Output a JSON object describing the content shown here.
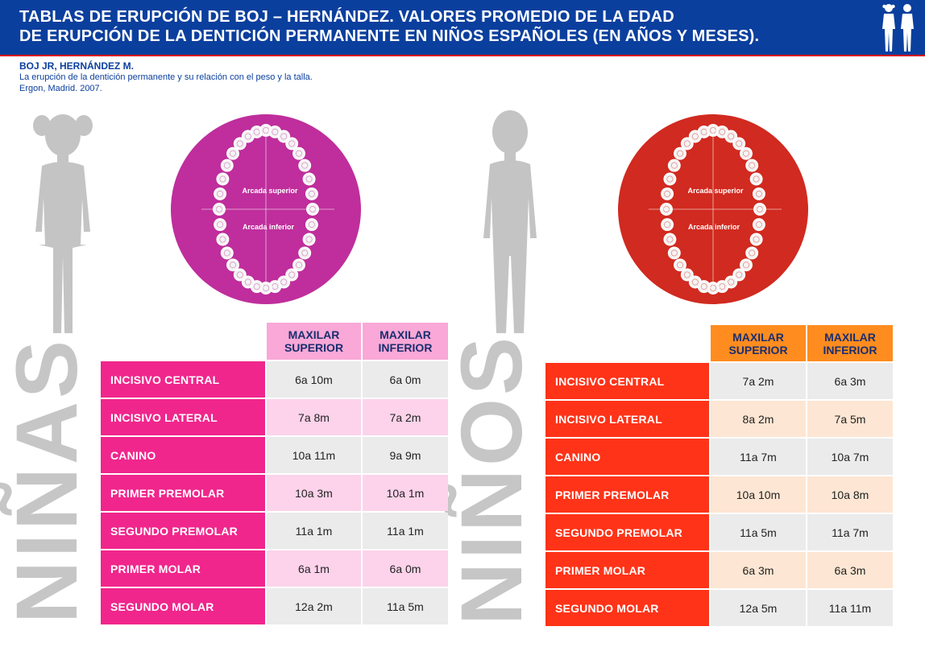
{
  "header": {
    "title_line1": "TABLAS DE ERUPCIÓN DE BOJ – HERNÁNDEZ. VALORES PROMEDIO DE LA EDAD",
    "title_line2": "DE ERUPCIÓN DE LA DENTICIÓN PERMANENTE EN NIÑOS ESPAÑOLES (EN AÑOS Y MESES).",
    "icon": "children-silhouette-icon"
  },
  "reference": {
    "authors": "BOJ JR, HERNÁNDEZ M.",
    "line1": "La erupción de la dentición permanente y su relación con el peso y la talla.",
    "line2": "Ergon, Madrid. 2007."
  },
  "girls": {
    "title": "NIÑAS",
    "color": "#f0268c",
    "arch_color": "#bf2e9c",
    "arch_upper_label": "Arcada superior",
    "arch_lower_label": "Arcada inferior",
    "col1": "MAXILAR SUPERIOR",
    "col2": "MAXILAR INFERIOR",
    "rows": [
      {
        "tooth": "INCISIVO CENTRAL",
        "sup": "6a 10m",
        "inf": "6a 0m"
      },
      {
        "tooth": "INCISIVO LATERAL",
        "sup": "7a 8m",
        "inf": "7a 2m"
      },
      {
        "tooth": "CANINO",
        "sup": "10a 11m",
        "inf": "9a 9m"
      },
      {
        "tooth": "PRIMER PREMOLAR",
        "sup": "10a 3m",
        "inf": "10a 1m"
      },
      {
        "tooth": "SEGUNDO PREMOLAR",
        "sup": "11a 1m",
        "inf": "11a 1m"
      },
      {
        "tooth": "PRIMER MOLAR",
        "sup": "6a 1m",
        "inf": "6a 0m"
      },
      {
        "tooth": "SEGUNDO MOLAR",
        "sup": "12a 2m",
        "inf": "11a 5m"
      }
    ]
  },
  "boys": {
    "title": "NIÑOS",
    "color": "#ff3318",
    "arch_color": "#d12a20",
    "arch_upper_label": "Arcada superior",
    "arch_lower_label": "Arcada inferior",
    "col1": "MAXILAR SUPERIOR",
    "col2": "MAXILAR INFERIOR",
    "rows": [
      {
        "tooth": "INCISIVO CENTRAL",
        "sup": "7a 2m",
        "inf": "6a 3m"
      },
      {
        "tooth": "INCISIVO LATERAL",
        "sup": "8a 2m",
        "inf": "7a 5m"
      },
      {
        "tooth": "CANINO",
        "sup": "11a 7m",
        "inf": "10a 7m"
      },
      {
        "tooth": "PRIMER PREMOLAR",
        "sup": "10a 10m",
        "inf": "10a 8m"
      },
      {
        "tooth": "SEGUNDO PREMOLAR",
        "sup": "11a 5m",
        "inf": "11a 7m"
      },
      {
        "tooth": "PRIMER MOLAR",
        "sup": "6a 3m",
        "inf": "6a 3m"
      },
      {
        "tooth": "SEGUNDO MOLAR",
        "sup": "12a 5m",
        "inf": "11a 11m"
      }
    ]
  },
  "colors": {
    "header_bg": "#0b3f9e",
    "girls_header_bg": "#f9a8d7",
    "girls_alt_bg": "#fcd3ea",
    "boys_header_bg": "#ff8c1f",
    "boys_alt_bg": "#fde6d3",
    "neutral_bg": "#ebebeb",
    "silhouette": "#c4c4c4"
  }
}
